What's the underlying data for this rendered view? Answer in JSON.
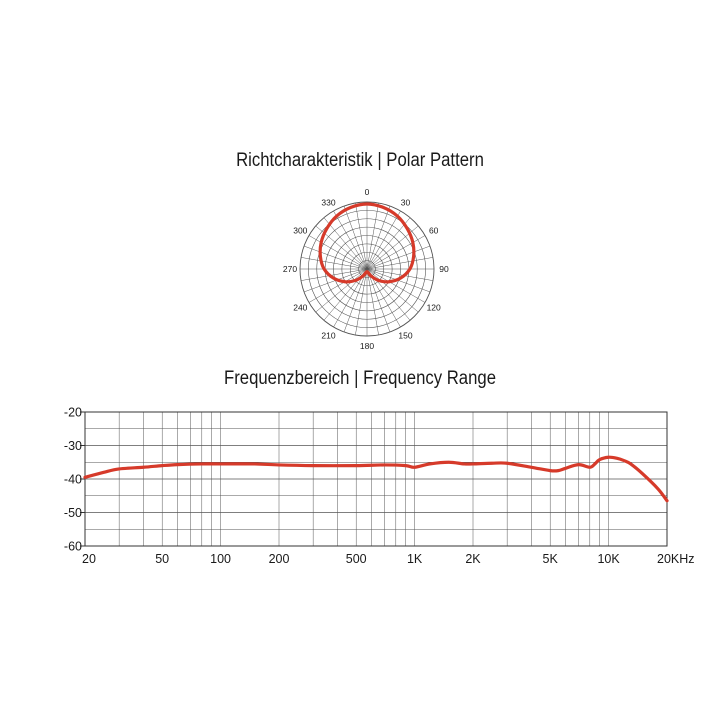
{
  "polar_title": "Richtcharakteristik | Polar Pattern",
  "freq_title": "Frequenzbereich | Frequency Range",
  "colors": {
    "curve": "#d63a2a",
    "grid": "#555555",
    "text": "#1a1a1a"
  },
  "chart_data": [
    {
      "type": "polar",
      "title": "Richtcharakteristik | Polar Pattern",
      "angle_labels": [
        "0",
        "30",
        "60",
        "90",
        "120",
        "150",
        "180",
        "210",
        "240",
        "270",
        "300",
        "330"
      ],
      "angles_deg": [
        0,
        30,
        60,
        90,
        120,
        150,
        180,
        210,
        240,
        270,
        300,
        330
      ],
      "rings": 8,
      "spokes_deg_step": 10,
      "radius_max": 1.0,
      "series": [
        {
          "angles": [
            0,
            15,
            30,
            45,
            60,
            75,
            90,
            105,
            120,
            135,
            150,
            165,
            180,
            195,
            210,
            225,
            240,
            255,
            270,
            285,
            300,
            315,
            330,
            345
          ],
          "values": [
            0.97,
            0.95,
            0.91,
            0.85,
            0.79,
            0.72,
            0.64,
            0.52,
            0.38,
            0.24,
            0.12,
            0.05,
            0.04,
            0.05,
            0.12,
            0.24,
            0.38,
            0.52,
            0.64,
            0.72,
            0.79,
            0.85,
            0.91,
            0.95
          ]
        }
      ]
    },
    {
      "type": "line",
      "title": "Frequenzbereich | Frequency Range",
      "x_scale": "log",
      "xlim": [
        20,
        20000
      ],
      "ylim": [
        -60,
        -20
      ],
      "x_ticks": [
        20,
        50,
        100,
        200,
        500,
        1000,
        2000,
        5000,
        10000,
        20000
      ],
      "x_tick_labels": [
        "20",
        "50",
        "100",
        "200",
        "500",
        "1K",
        "2K",
        "5K",
        "10K",
        "20KHz"
      ],
      "y_ticks": [
        -20,
        -30,
        -40,
        -50,
        -60
      ],
      "y_tick_labels": [
        "-20",
        "-30",
        "-40",
        "-50",
        "-60"
      ],
      "grid": true,
      "series": [
        {
          "x": [
            20,
            25,
            30,
            40,
            50,
            60,
            80,
            100,
            150,
            200,
            300,
            500,
            700,
            900,
            1000,
            1200,
            1500,
            1800,
            2000,
            2500,
            3000,
            4000,
            5000,
            5500,
            6000,
            7000,
            8000,
            8500,
            9000,
            10000,
            11000,
            12000,
            13000,
            15000,
            18000,
            20000
          ],
          "y": [
            -39.5,
            -38,
            -37,
            -36.5,
            -36,
            -35.7,
            -35.5,
            -35.5,
            -35.5,
            -35.8,
            -36,
            -36,
            -35.8,
            -36,
            -36.5,
            -35.5,
            -35,
            -35.5,
            -35.5,
            -35.3,
            -35.3,
            -36.5,
            -37.5,
            -37.5,
            -36.8,
            -35.7,
            -36.5,
            -35.5,
            -34.2,
            -33.5,
            -33.8,
            -34.5,
            -35.5,
            -38.5,
            -43,
            -46.5
          ]
        }
      ]
    }
  ]
}
